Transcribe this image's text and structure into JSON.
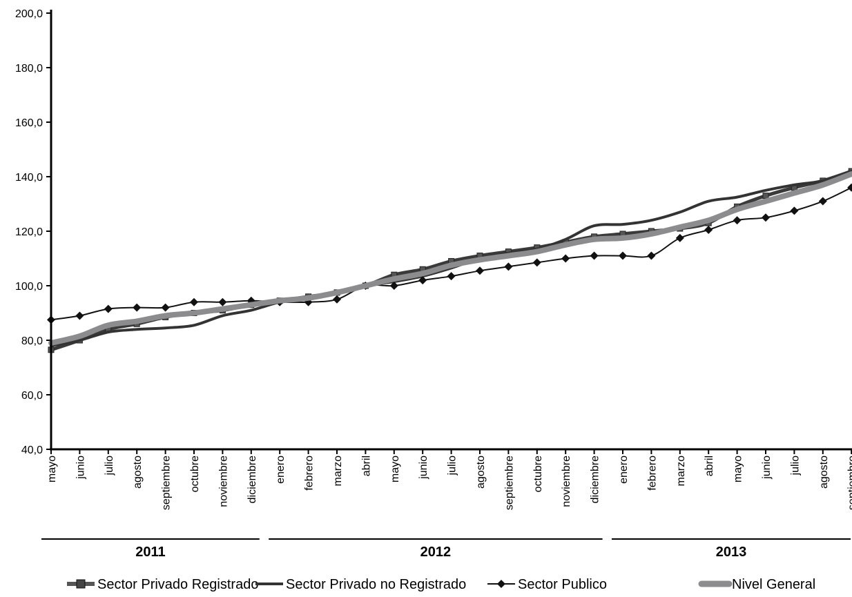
{
  "chart_data": {
    "type": "line",
    "ylim": [
      40,
      200
    ],
    "yticks": [
      "200,0",
      "180,0",
      "160,0",
      "140,0",
      "120,0",
      "100,0",
      "80,0",
      "60,0",
      "40,0"
    ],
    "categories": [
      "mayo",
      "junio",
      "julio",
      "agosto",
      "septiembre",
      "octubre",
      "noviembre",
      "diciembre",
      "enero",
      "febrero",
      "marzo",
      "abril",
      "mayo",
      "junio",
      "julio",
      "agosto",
      "septiembre",
      "octubre",
      "noviembre",
      "diciembre",
      "enero",
      "febrero",
      "marzo",
      "abril",
      "mayo",
      "junio",
      "julio",
      "agosto",
      "septiembre"
    ],
    "years": [
      {
        "label": "2011",
        "from": 0,
        "to": 7
      },
      {
        "label": "2012",
        "from": 8,
        "to": 19
      },
      {
        "label": "2013",
        "from": 20,
        "to": 28
      }
    ],
    "series": [
      {
        "name": "Sector Privado Registrado",
        "color": "#3a3a3a",
        "style": "square-marker",
        "values": [
          76.5,
          80.0,
          84.0,
          86.0,
          88.5,
          90.0,
          91.0,
          93.0,
          94.5,
          96.0,
          97.5,
          100.0,
          104.0,
          106.0,
          109.0,
          111.0,
          112.5,
          114.0,
          116.0,
          118.0,
          119.0,
          120.0,
          121.0,
          123.0,
          129.0,
          133.0,
          136.0,
          138.5,
          142.0
        ]
      },
      {
        "name": "Sector Privado no Registrado",
        "color": "#333333",
        "style": "thick-line",
        "values": [
          78.0,
          80.0,
          83.0,
          84.0,
          84.5,
          85.5,
          89.0,
          91.0,
          94.0,
          95.5,
          97.0,
          100.0,
          101.5,
          103.5,
          106.5,
          110.0,
          112.0,
          113.5,
          117.0,
          122.0,
          122.5,
          124.0,
          127.0,
          131.0,
          132.5,
          135.0,
          137.0,
          138.5,
          142.0
        ]
      },
      {
        "name": "Sector Publico",
        "color": "#111111",
        "style": "diamond-marker",
        "values": [
          87.5,
          89.0,
          91.5,
          92.0,
          92.0,
          94.0,
          94.0,
          94.5,
          94.0,
          94.0,
          95.0,
          100.0,
          100.0,
          102.0,
          103.5,
          105.5,
          107.0,
          108.5,
          110.0,
          111.0,
          111.0,
          111.0,
          117.5,
          120.5,
          124.0,
          125.0,
          127.5,
          131.0,
          136.0
        ]
      },
      {
        "name": "Nivel General",
        "color": "#8c8c8f",
        "style": "wide-line",
        "values": [
          79.0,
          81.5,
          85.5,
          87.0,
          89.0,
          90.0,
          91.5,
          93.0,
          94.5,
          95.5,
          97.5,
          100.0,
          102.5,
          104.5,
          107.5,
          109.5,
          111.0,
          112.5,
          115.0,
          117.0,
          117.5,
          119.0,
          121.5,
          124.0,
          128.0,
          131.0,
          134.0,
          137.0,
          141.0
        ]
      }
    ]
  }
}
